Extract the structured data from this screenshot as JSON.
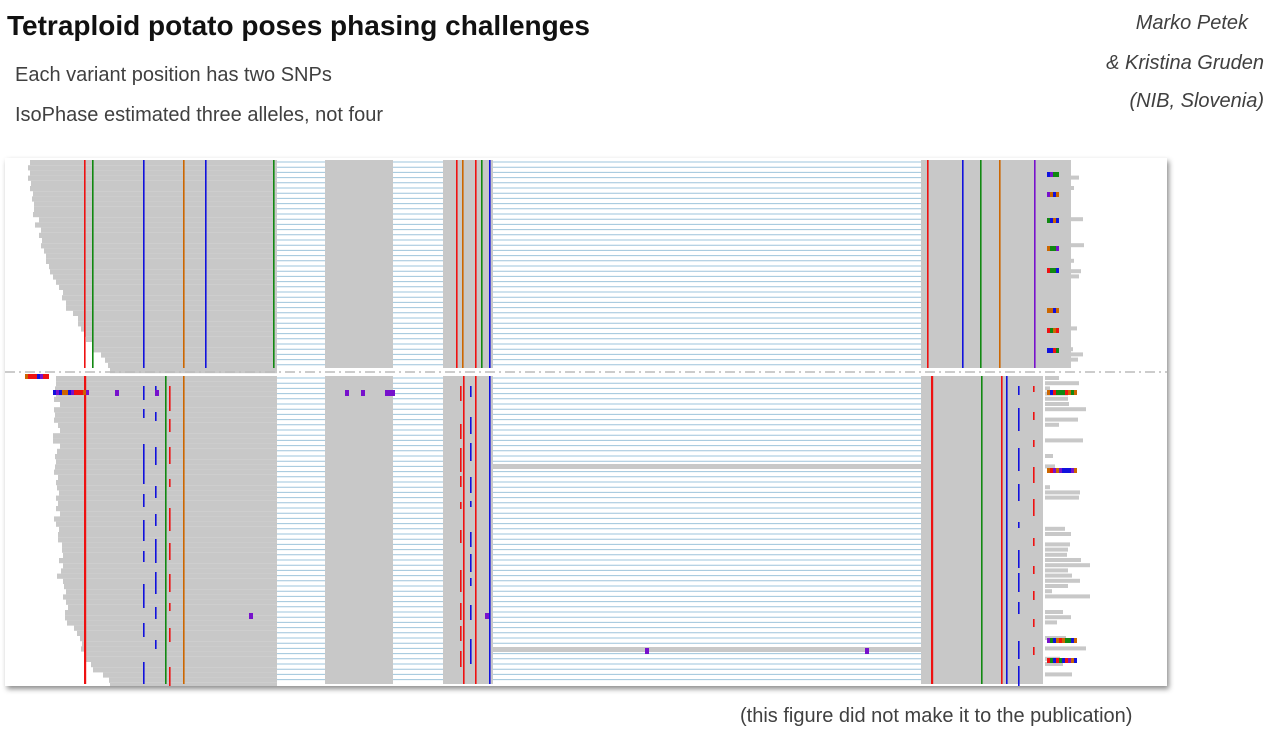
{
  "slide": {
    "title": "Tetraploid potato poses phasing challenges",
    "bullets": [
      "Each variant position has two SNPs",
      "IsoPhase estimated three alleles, not four"
    ],
    "authors": [
      "Marko Petek",
      "& Kristina Gruden",
      "(NIB, Slovenia)"
    ],
    "footnote": "(this figure did not make it to the publication)"
  },
  "colors": {
    "read_fill": "#c8c8c8",
    "intron_line": "#9ec4dc",
    "snp_red": "#ee1111",
    "snp_blue": "#1111dd",
    "snp_green": "#118811",
    "snp_orange": "#cc6600",
    "snp_purple": "#7711cc",
    "divider": "#bbbbbb"
  },
  "icons": []
}
